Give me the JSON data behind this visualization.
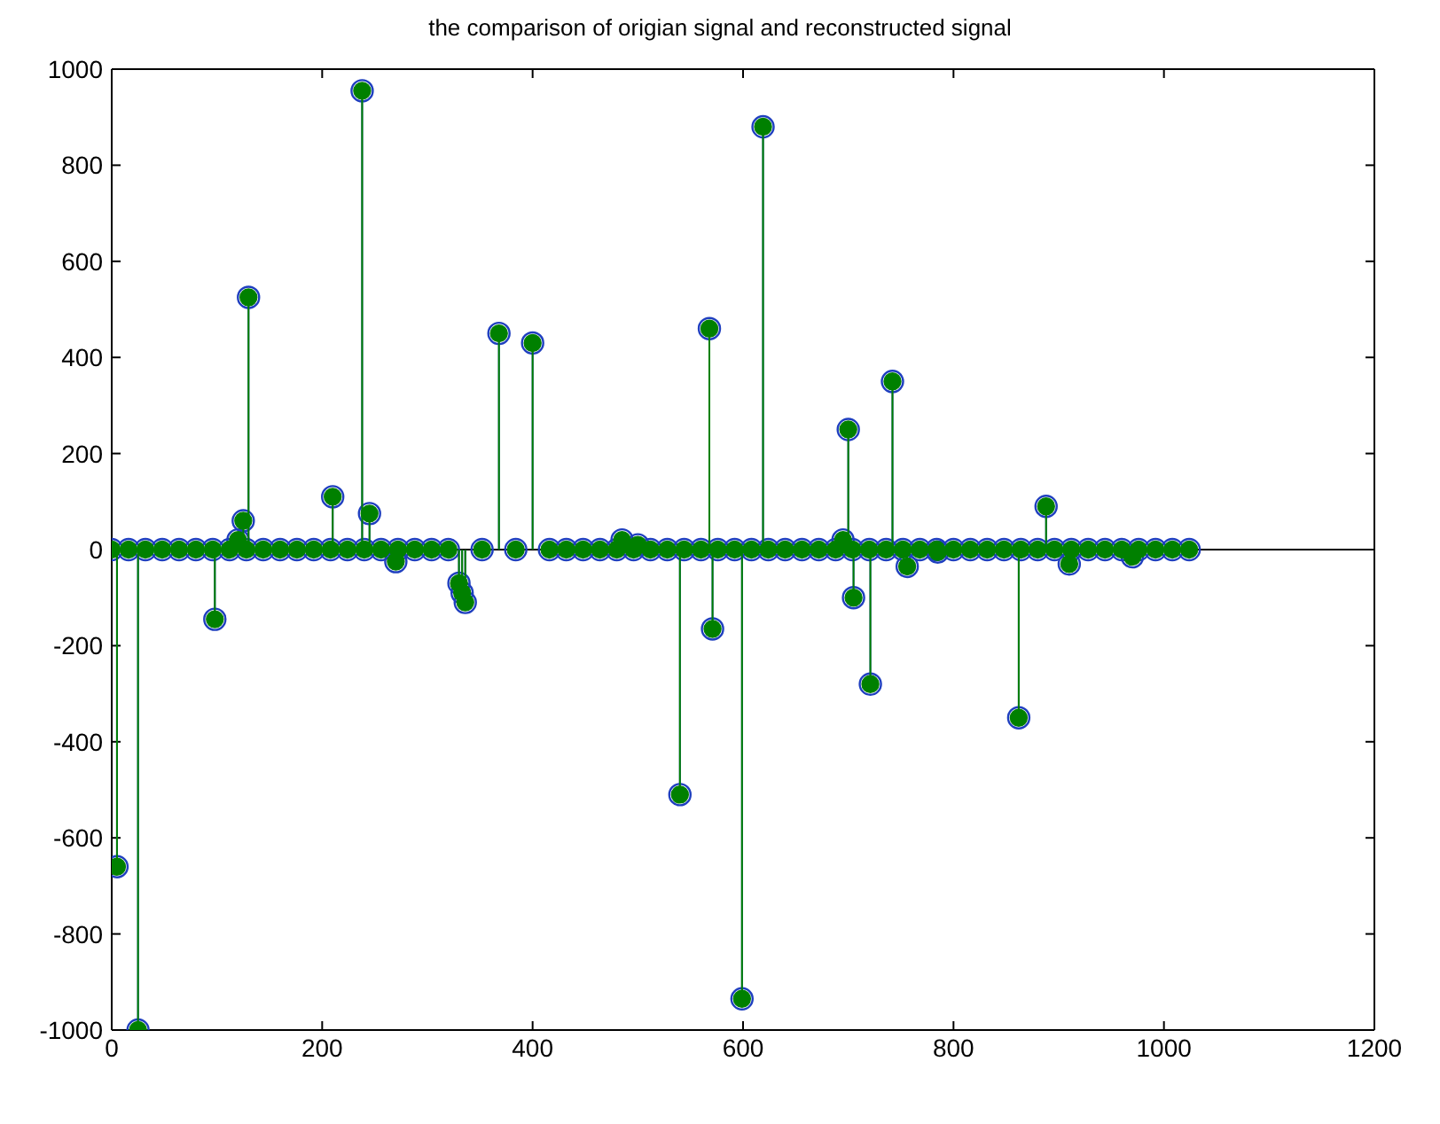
{
  "chart_data": {
    "type": "lollipop",
    "title": "the comparison of origian signal and reconstructed signal",
    "x": [
      0,
      5,
      16,
      25,
      32,
      48,
      64,
      80,
      96,
      98,
      112,
      120,
      125,
      128,
      130,
      144,
      160,
      176,
      192,
      208,
      210,
      224,
      238,
      240,
      245,
      256,
      270,
      272,
      288,
      304,
      320,
      330,
      333,
      336,
      352,
      368,
      384,
      400,
      416,
      432,
      448,
      464,
      480,
      485,
      496,
      500,
      512,
      528,
      540,
      544,
      560,
      568,
      571,
      576,
      592,
      599,
      608,
      619,
      624,
      640,
      656,
      672,
      688,
      695,
      700,
      704,
      705,
      720,
      721,
      736,
      742,
      752,
      756,
      768,
      784,
      785,
      800,
      816,
      832,
      848,
      862,
      864,
      880,
      888,
      896,
      910,
      912,
      928,
      944,
      960,
      970,
      976,
      992,
      1008,
      1024
    ],
    "series": [
      {
        "color": "#1f3fbf",
        "values": [
          0,
          -660,
          0,
          -1000,
          0,
          0,
          0,
          0,
          0,
          -145,
          0,
          20,
          60,
          0,
          525,
          0,
          0,
          0,
          0,
          0,
          110,
          0,
          955,
          0,
          75,
          0,
          -25,
          0,
          0,
          0,
          0,
          -70,
          -90,
          -110,
          0,
          450,
          0,
          430,
          0,
          0,
          0,
          0,
          0,
          20,
          0,
          10,
          0,
          0,
          -510,
          0,
          0,
          460,
          -165,
          0,
          0,
          -935,
          0,
          880,
          0,
          0,
          0,
          0,
          0,
          20,
          250,
          0,
          -100,
          0,
          -280,
          0,
          350,
          0,
          -35,
          0,
          0,
          -5,
          0,
          0,
          0,
          0,
          -350,
          0,
          0,
          90,
          0,
          -30,
          0,
          0,
          0,
          0,
          -15,
          0,
          0,
          0,
          0
        ]
      },
      {
        "color": "#008000",
        "values": [
          0,
          -660,
          0,
          -1000,
          0,
          0,
          0,
          0,
          0,
          -145,
          0,
          20,
          60,
          0,
          525,
          0,
          0,
          0,
          0,
          0,
          110,
          0,
          955,
          0,
          75,
          0,
          -25,
          0,
          0,
          0,
          0,
          -70,
          -90,
          -110,
          0,
          450,
          0,
          430,
          0,
          0,
          0,
          0,
          0,
          20,
          0,
          10,
          0,
          0,
          -510,
          0,
          0,
          460,
          -165,
          0,
          0,
          -935,
          0,
          880,
          0,
          0,
          0,
          0,
          0,
          20,
          250,
          0,
          -100,
          0,
          -280,
          0,
          350,
          0,
          -35,
          0,
          0,
          -5,
          0,
          0,
          0,
          0,
          -350,
          0,
          0,
          90,
          0,
          -30,
          0,
          0,
          0,
          0,
          -15,
          0,
          0,
          0,
          0
        ]
      }
    ],
    "marker": "circle",
    "xlim": [
      0,
      1200
    ],
    "xticks": [
      0,
      200,
      400,
      600,
      800,
      1000,
      1200
    ],
    "ylim": [
      -1000,
      1000
    ],
    "yticks": [
      -1000,
      -800,
      -600,
      -400,
      -200,
      0,
      200,
      400,
      600,
      800,
      1000
    ],
    "ref_lines": [
      {
        "axis": "y",
        "value": 0,
        "color": "#000000"
      }
    ]
  }
}
